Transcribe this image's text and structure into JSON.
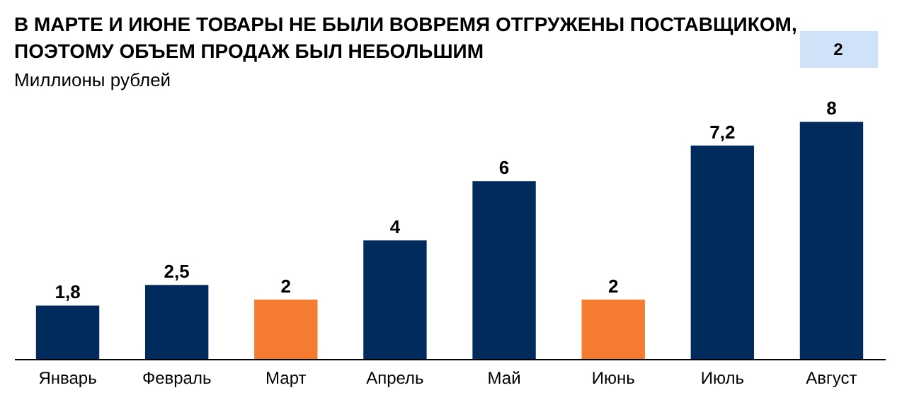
{
  "chart_data": {
    "type": "bar",
    "title": "В МАРТЕ И ИЮНЕ ТОВАРЫ НЕ БЫЛИ ВОВРЕМЯ ОТГРУЖЕНЫ ПОСТАВЩИКОМ,\nПОЭТОМУ ОБЪЕМ ПРОДАЖ БЫЛ НЕБОЛЬШИМ",
    "subtitle": "Миллионы рублей",
    "annotations": [
      "2"
    ],
    "categories": [
      "Январь",
      "Февраль",
      "Март",
      "Апрель",
      "Май",
      "Июнь",
      "Июль",
      "Август"
    ],
    "values": [
      1.8,
      2.5,
      2,
      4,
      6,
      2,
      7.2,
      8
    ],
    "colors": [
      "#002b5c",
      "#002b5c",
      "#f47b2f",
      "#002b5c",
      "#002b5c",
      "#f47b2f",
      "#002b5c",
      "#002b5c"
    ],
    "value_labels": [
      "1,8",
      "2,5",
      "2",
      "4",
      "6",
      "2",
      "7,2",
      "8"
    ],
    "grid": false
  }
}
